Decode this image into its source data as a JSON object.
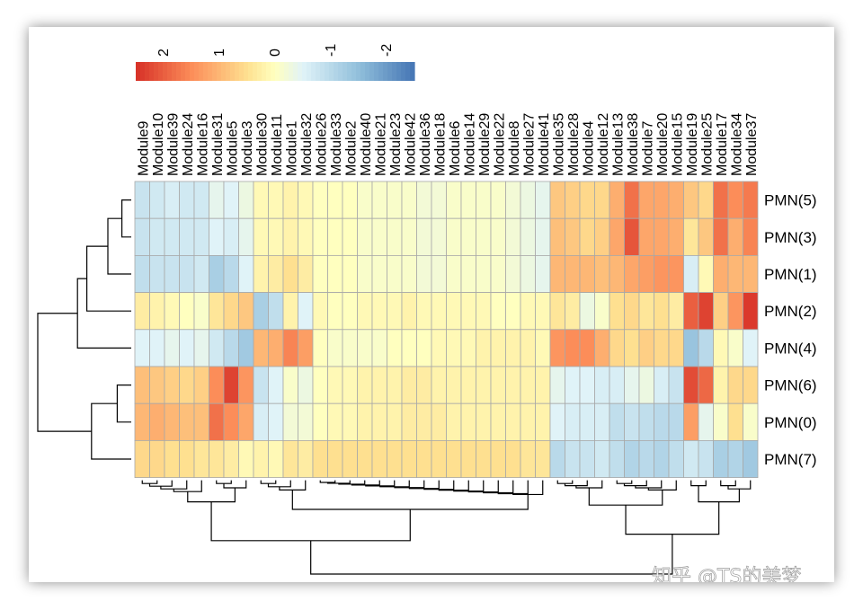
{
  "chart_data": {
    "type": "heatmap",
    "title": "",
    "columns": [
      "Module9",
      "Module10",
      "Module39",
      "Module24",
      "Module16",
      "Module31",
      "Module5",
      "Module3",
      "Module30",
      "Module11",
      "Module1",
      "Module32",
      "Module26",
      "Module33",
      "Module2",
      "Module40",
      "Module21",
      "Module23",
      "Module42",
      "Module36",
      "Module18",
      "Module6",
      "Module14",
      "Module29",
      "Module22",
      "Module8",
      "Module27",
      "Module41",
      "Module35",
      "Module28",
      "Module4",
      "Module12",
      "Module13",
      "Module38",
      "Module7",
      "Module20",
      "Module15",
      "Module19",
      "Module25",
      "Module17",
      "Module34",
      "Module37"
    ],
    "rows": [
      "PMN(5)",
      "PMN(3)",
      "PMN(1)",
      "PMN(2)",
      "PMN(4)",
      "PMN(6)",
      "PMN(0)",
      "PMN(7)"
    ],
    "values": [
      [
        -0.8,
        -0.7,
        -0.6,
        -0.7,
        -0.7,
        -0.4,
        -0.5,
        -0.3,
        0.1,
        0.1,
        0.2,
        0.1,
        0,
        0,
        0,
        -0.1,
        -0.1,
        -0.1,
        -0.1,
        -0.2,
        -0.2,
        -0.1,
        -0.1,
        -0.1,
        -0.1,
        -0.2,
        -0.3,
        -0.4,
        0.8,
        0.7,
        0.6,
        0.6,
        1.1,
        1.8,
        1.2,
        1.2,
        1.1,
        0.8,
        0.6,
        1.8,
        1.5,
        1.7
      ],
      [
        -0.8,
        -0.7,
        -0.7,
        -0.7,
        -0.7,
        -0.5,
        -0.6,
        -0.4,
        0.1,
        0.1,
        0.2,
        0.1,
        0,
        0,
        0,
        -0.1,
        -0.1,
        -0.1,
        -0.1,
        -0.2,
        -0.2,
        -0.1,
        -0.1,
        -0.1,
        -0.1,
        -0.2,
        -0.3,
        -0.4,
        0.9,
        0.8,
        0.6,
        0.7,
        1.2,
        2.1,
        1.2,
        1.2,
        1.1,
        0.4,
        0.8,
        1.8,
        1.1,
        1.6
      ],
      [
        -0.9,
        -0.8,
        -0.8,
        -0.8,
        -0.7,
        -1.2,
        -1.0,
        -0.5,
        0.2,
        0.3,
        0.5,
        0.3,
        0,
        0,
        0,
        -0.1,
        -0.1,
        -0.1,
        -0.1,
        -0.2,
        -0.2,
        -0.1,
        -0.1,
        -0.1,
        -0.1,
        -0.2,
        -0.3,
        -0.4,
        1.0,
        1.0,
        1.0,
        0.9,
        1.0,
        1.2,
        1.3,
        1.4,
        1.4,
        -0.6,
        0.1,
        1.1,
        1.0,
        1.0
      ],
      [
        0.3,
        0.2,
        0.1,
        0,
        -0.1,
        0.4,
        0.6,
        0.8,
        -1.2,
        -0.9,
        0.2,
        -0.5,
        0.1,
        0,
        0,
        0.1,
        0.1,
        0.1,
        0.2,
        0.1,
        0.1,
        0.1,
        0.1,
        0.1,
        0,
        0,
        0.1,
        0.1,
        0.4,
        0.3,
        -0.3,
        -0.1,
        0.5,
        0.6,
        0.4,
        0.5,
        0.3,
        2.0,
        2.3,
        0.7,
        1.4,
        2.4
      ],
      [
        -0.5,
        -0.5,
        -0.4,
        -0.5,
        -0.4,
        -0.7,
        -1.0,
        -1.3,
        1.0,
        1.1,
        1.6,
        1.3,
        0,
        -0.1,
        -0.1,
        -0.1,
        -0.1,
        0,
        0,
        0,
        0.1,
        0.1,
        0.1,
        0.2,
        0.2,
        0.2,
        0.2,
        0.1,
        1.4,
        1.5,
        1.5,
        1.1,
        0.6,
        0.5,
        0.7,
        0.6,
        0.6,
        -1.4,
        -1.0,
        0.1,
        -0.1,
        -0.5
      ],
      [
        0.9,
        0.8,
        0.7,
        0.6,
        0.7,
        1.5,
        2.3,
        1.4,
        -0.8,
        -0.5,
        -0.1,
        -0.3,
        0,
        0.1,
        0.1,
        0.2,
        0.2,
        0.2,
        0.3,
        0.3,
        0.2,
        0.2,
        0.2,
        0.2,
        0.2,
        0.2,
        0.2,
        0.2,
        -0.4,
        -0.5,
        -0.5,
        -0.6,
        -0.6,
        -0.4,
        -0.3,
        -0.6,
        -0.8,
        2.2,
        1.9,
        0.2,
        0.6,
        0.6
      ],
      [
        1.0,
        1.1,
        1.0,
        0.9,
        0.9,
        1.8,
        1.5,
        1.2,
        -0.6,
        -0.5,
        -0.2,
        -0.2,
        0,
        0.1,
        0.1,
        0.2,
        0.2,
        0.2,
        0.3,
        0.3,
        0.3,
        0.2,
        0.2,
        0.2,
        0.2,
        0.2,
        0.2,
        0.2,
        -0.5,
        -0.6,
        -0.6,
        -0.6,
        -0.9,
        -0.8,
        -0.9,
        -1.0,
        -1.0,
        1.3,
        -0.4,
        -0.1,
        0.5,
        -0.1
      ],
      [
        0.6,
        0.6,
        0.5,
        0.5,
        0.4,
        0.4,
        0.3,
        0.1,
        0.2,
        0.1,
        0.4,
        0.3,
        0.5,
        0.5,
        0.5,
        0.5,
        0.5,
        0.5,
        0.5,
        0.5,
        0.5,
        0.5,
        0.5,
        0.5,
        0.5,
        0.5,
        0.4,
        0.4,
        -1.0,
        -0.8,
        -0.8,
        -0.7,
        -0.9,
        -1.1,
        -1.0,
        -1.1,
        -0.9,
        -0.7,
        -0.8,
        -1.2,
        -1.1,
        -1.3
      ]
    ],
    "legend": {
      "ticks": [
        "2",
        "1",
        "0",
        "-1",
        "-2"
      ],
      "tick_values": [
        2,
        1,
        0,
        -1,
        -2
      ],
      "range": [
        -2.5,
        2.5
      ]
    },
    "colors": {
      "high": "#d73027",
      "mid": "#ffffbf",
      "low": "#4575b4",
      "grid": "#a8a8a8"
    }
  },
  "watermark": "知乎 @TS的美梦"
}
